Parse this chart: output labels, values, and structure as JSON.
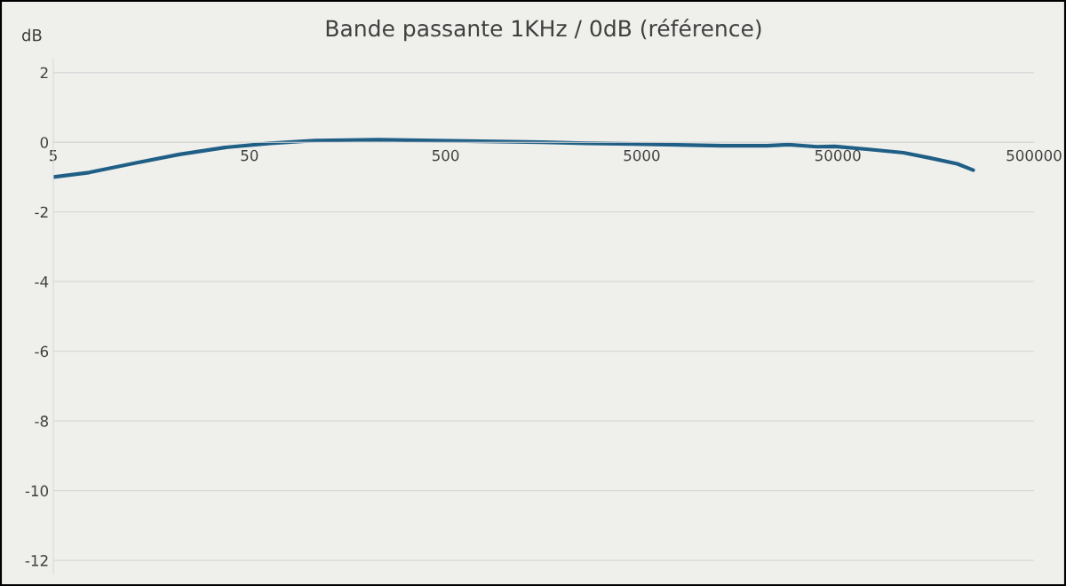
{
  "chart_data": {
    "type": "line",
    "title": "Bande passante 1KHz / 0dB (référence)",
    "ylabel": "dB",
    "log": "x",
    "xlim": [
      5,
      500000
    ],
    "xticks": [
      5,
      50,
      500,
      5000,
      50000,
      500000
    ],
    "ylim": [
      -12.4,
      2.4
    ],
    "yticks": [
      -12,
      -10,
      -8,
      -6,
      -4,
      -2,
      0,
      2
    ],
    "grid": "y",
    "legend": false,
    "marker": "none",
    "line_style": "solid",
    "series": [
      {
        "color": "#1f5f86",
        "x": [
          5,
          7.6,
          13,
          22,
          37.5,
          64,
          108,
          228,
          530,
          1540,
          2620,
          4470,
          12900,
          21800,
          28000,
          39000,
          48000,
          70000,
          108000,
          147000,
          203000,
          245000
        ],
        "values": [
          -1.0,
          -0.87,
          -0.6,
          -0.35,
          -0.15,
          -0.03,
          0.05,
          0.07,
          0.04,
          0.0,
          -0.03,
          -0.05,
          -0.1,
          -0.1,
          -0.07,
          -0.13,
          -0.12,
          -0.2,
          -0.3,
          -0.45,
          -0.62,
          -0.8
        ]
      }
    ]
  }
}
